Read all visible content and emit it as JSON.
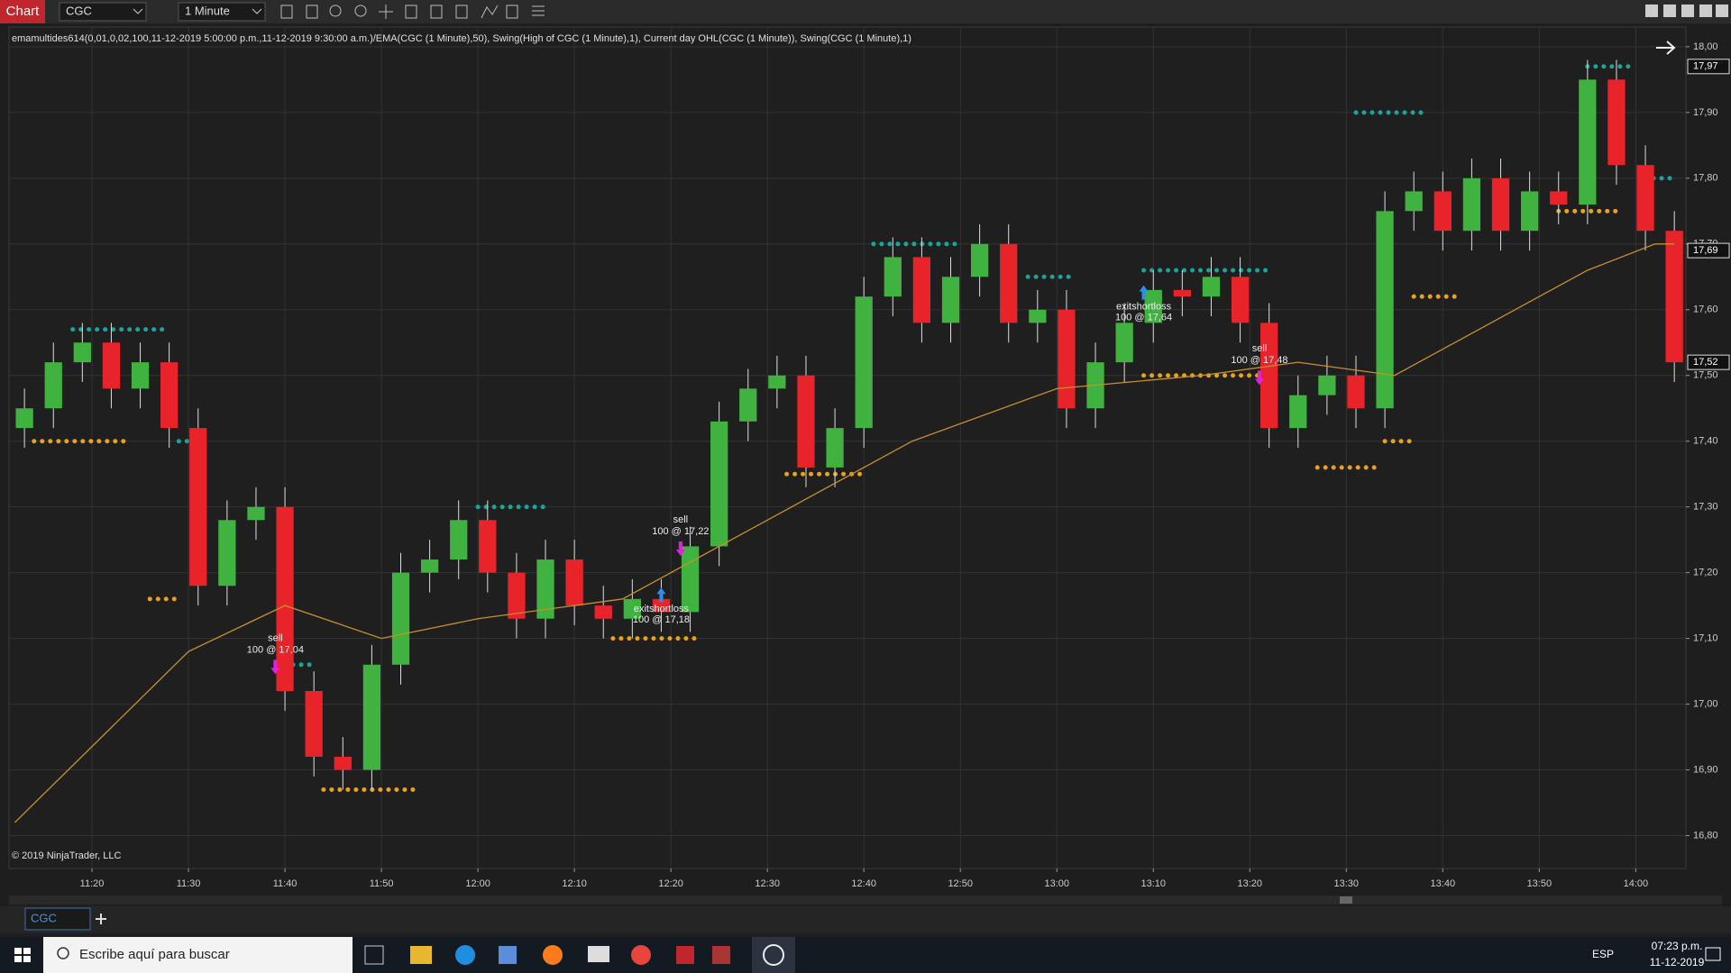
{
  "window": {
    "tab": "Chart",
    "instrument": "CGC",
    "interval": "1 Minute"
  },
  "chart_data": {
    "type": "candlestick",
    "title": "emamultides614(0,01,0,02,100,11-12-2019 5:00:00 p.m.,11-12-2019 9:30:00 a.m.)/EMA(CGC (1 Minute),50), Swing(High of CGC (1 Minute),1), Current day OHL(CGC (1 Minute)), Swing(CGC (1 Minute),1)",
    "copyright": "© 2019 NinjaTrader, LLC",
    "x": [
      673,
      676,
      679,
      682,
      685,
      688,
      691,
      694,
      697,
      700,
      703,
      706,
      709,
      712,
      715,
      718,
      721,
      724,
      727,
      730,
      733,
      736,
      739,
      742,
      745,
      748,
      751,
      754,
      757,
      760,
      763,
      766,
      769,
      772,
      775,
      778,
      781,
      784,
      787,
      790,
      793,
      796,
      799,
      802,
      805,
      808,
      811,
      814,
      817,
      820,
      823,
      826,
      829,
      832,
      835,
      838,
      841,
      844
    ],
    "open": [
      17.42,
      17.45,
      17.52,
      17.55,
      17.48,
      17.52,
      17.42,
      17.18,
      17.28,
      17.3,
      17.02,
      16.92,
      16.9,
      17.06,
      17.2,
      17.22,
      17.28,
      17.2,
      17.13,
      17.22,
      17.15,
      17.13,
      17.16,
      17.14,
      17.24,
      17.43,
      17.48,
      17.5,
      17.36,
      17.42,
      17.62,
      17.68,
      17.58,
      17.65,
      17.7,
      17.58,
      17.6,
      17.45,
      17.52,
      17.58,
      17.63,
      17.62,
      17.65,
      17.58,
      17.42,
      17.47,
      17.5,
      17.45,
      17.75,
      17.78,
      17.72,
      17.8,
      17.72,
      17.78,
      17.76,
      17.95,
      17.82,
      17.72
    ],
    "high": [
      17.48,
      17.55,
      17.58,
      17.58,
      17.55,
      17.55,
      17.45,
      17.31,
      17.33,
      17.33,
      17.05,
      16.95,
      17.09,
      17.23,
      17.25,
      17.31,
      17.31,
      17.23,
      17.25,
      17.25,
      17.18,
      17.19,
      17.19,
      17.27,
      17.46,
      17.51,
      17.53,
      17.53,
      17.45,
      17.65,
      17.71,
      17.71,
      17.68,
      17.73,
      17.73,
      17.63,
      17.63,
      17.55,
      17.61,
      17.66,
      17.66,
      17.68,
      17.68,
      17.61,
      17.5,
      17.53,
      17.53,
      17.78,
      17.81,
      17.81,
      17.83,
      17.83,
      17.81,
      17.81,
      17.98,
      17.98,
      17.85,
      17.75
    ],
    "low": [
      17.39,
      17.42,
      17.49,
      17.45,
      17.45,
      17.39,
      17.15,
      17.15,
      17.25,
      16.99,
      16.89,
      16.87,
      16.87,
      17.03,
      17.17,
      17.19,
      17.17,
      17.1,
      17.1,
      17.12,
      17.1,
      17.1,
      17.11,
      17.11,
      17.21,
      17.4,
      17.45,
      17.33,
      17.33,
      17.39,
      17.59,
      17.55,
      17.55,
      17.62,
      17.55,
      17.55,
      17.42,
      17.42,
      17.49,
      17.55,
      17.59,
      17.59,
      17.55,
      17.39,
      17.39,
      17.44,
      17.42,
      17.42,
      17.72,
      17.69,
      17.69,
      17.69,
      17.69,
      17.73,
      17.73,
      17.79,
      17.69,
      17.49
    ],
    "close": [
      17.45,
      17.52,
      17.55,
      17.48,
      17.52,
      17.42,
      17.18,
      17.28,
      17.3,
      17.02,
      16.92,
      16.9,
      17.06,
      17.2,
      17.22,
      17.28,
      17.2,
      17.13,
      17.22,
      17.15,
      17.13,
      17.16,
      17.14,
      17.24,
      17.43,
      17.48,
      17.5,
      17.36,
      17.42,
      17.62,
      17.68,
      17.58,
      17.65,
      17.7,
      17.58,
      17.6,
      17.45,
      17.52,
      17.58,
      17.63,
      17.62,
      17.65,
      17.58,
      17.42,
      17.47,
      17.5,
      17.45,
      17.75,
      17.78,
      17.72,
      17.8,
      17.72,
      17.78,
      17.76,
      17.95,
      17.82,
      17.72,
      17.52
    ],
    "up_color": "#3fb23f",
    "down_color": "#e8242a",
    "ema": {
      "color": "#c8902a",
      "x": [
        672,
        690,
        700,
        710,
        720,
        735,
        750,
        765,
        780,
        795,
        805,
        815,
        825,
        835,
        842,
        844
      ],
      "values": [
        16.82,
        17.08,
        17.15,
        17.1,
        17.13,
        17.16,
        17.28,
        17.4,
        17.48,
        17.5,
        17.52,
        17.5,
        17.58,
        17.66,
        17.7,
        17.7
      ]
    },
    "swing_highs": {
      "color": "#1aa59c",
      "segments": [
        {
          "x": [
            678,
            688
          ],
          "value": 17.57
        },
        {
          "x": [
            689,
            691
          ],
          "value": 17.4
        },
        {
          "x": [
            700,
            703
          ],
          "value": 17.06
        },
        {
          "x": [
            720,
            727
          ],
          "value": 17.3
        },
        {
          "x": [
            761,
            770
          ],
          "value": 17.7
        },
        {
          "x": [
            777,
            782
          ],
          "value": 17.65
        },
        {
          "x": [
            789,
            802
          ],
          "value": 17.66
        },
        {
          "x": [
            811,
            818
          ],
          "value": 17.9
        },
        {
          "x": [
            835,
            840
          ],
          "value": 17.97
        },
        {
          "x": [
            841,
            844
          ],
          "value": 17.8
        }
      ]
    },
    "swing_lows": {
      "color": "#e8a21c",
      "segments": [
        {
          "x": [
            674,
            684
          ],
          "value": 17.4
        },
        {
          "x": [
            686,
            689
          ],
          "value": 17.16
        },
        {
          "x": [
            704,
            714
          ],
          "value": 16.87
        },
        {
          "x": [
            734,
            743
          ],
          "value": 17.1
        },
        {
          "x": [
            752,
            760
          ],
          "value": 17.35
        },
        {
          "x": [
            789,
            801
          ],
          "value": 17.5
        },
        {
          "x": [
            807,
            813
          ],
          "value": 17.36
        },
        {
          "x": [
            814,
            817
          ],
          "value": 17.4
        },
        {
          "x": [
            817,
            822
          ],
          "value": 17.62
        },
        {
          "x": [
            832,
            838
          ],
          "value": 17.75
        }
      ]
    },
    "trades": [
      {
        "label": "sell",
        "detail": "100 @ 17,04",
        "x": 699,
        "value": 17.04,
        "direction": "down"
      },
      {
        "label": "sell",
        "detail": "100 @ 17,22",
        "x": 741,
        "value": 17.22,
        "direction": "down"
      },
      {
        "label": "exitshortloss",
        "detail": "100 @ 17,18",
        "x": 739,
        "value": 17.18,
        "direction": "up"
      },
      {
        "label": "exitshortloss",
        "detail": "100 @ 17,64",
        "x": 789,
        "value": 17.64,
        "direction": "up"
      },
      {
        "label": "sell",
        "detail": "100 @ 17,48",
        "x": 801,
        "value": 17.48,
        "direction": "down"
      }
    ],
    "price_markers": [
      {
        "value": 17.97,
        "label": "17,97"
      },
      {
        "value": 17.69,
        "label": "17,69"
      },
      {
        "value": 17.52,
        "label": "17,52"
      }
    ],
    "xlim": [
      671.4,
      845.2
    ],
    "ylim": [
      16.75,
      18.03
    ],
    "xticks": [
      {
        "value": 680,
        "label": "11:20"
      },
      {
        "value": 690,
        "label": "11:30"
      },
      {
        "value": 700,
        "label": "11:40"
      },
      {
        "value": 710,
        "label": "11:50"
      },
      {
        "value": 720,
        "label": "12:00"
      },
      {
        "value": 730,
        "label": "12:10"
      },
      {
        "value": 740,
        "label": "12:20"
      },
      {
        "value": 750,
        "label": "12:30"
      },
      {
        "value": 760,
        "label": "12:40"
      },
      {
        "value": 770,
        "label": "12:50"
      },
      {
        "value": 780,
        "label": "13:00"
      },
      {
        "value": 790,
        "label": "13:10"
      },
      {
        "value": 800,
        "label": "13:20"
      },
      {
        "value": 810,
        "label": "13:30"
      },
      {
        "value": 820,
        "label": "13:40"
      },
      {
        "value": 830,
        "label": "13:50"
      },
      {
        "value": 840,
        "label": "14:00"
      }
    ],
    "yticks": [
      {
        "value": 16.8,
        "label": "16,80"
      },
      {
        "value": 16.9,
        "label": "16,90"
      },
      {
        "value": 17.0,
        "label": "17,00"
      },
      {
        "value": 17.1,
        "label": "17,10"
      },
      {
        "value": 17.2,
        "label": "17,20"
      },
      {
        "value": 17.3,
        "label": "17,30"
      },
      {
        "value": 17.4,
        "label": "17,40"
      },
      {
        "value": 17.5,
        "label": "17,50"
      },
      {
        "value": 17.6,
        "label": "17,60"
      },
      {
        "value": 17.7,
        "label": "17,70"
      },
      {
        "value": 17.8,
        "label": "17,80"
      },
      {
        "value": 17.9,
        "label": "17,90"
      },
      {
        "value": 18.0,
        "label": "18,00"
      }
    ],
    "grid": true
  },
  "bottom_tab": "CGC",
  "taskbar": {
    "search": "Escribe aquí para buscar",
    "language": "ESP",
    "time": "07:23 p.m.",
    "date": "11-12-2019"
  }
}
